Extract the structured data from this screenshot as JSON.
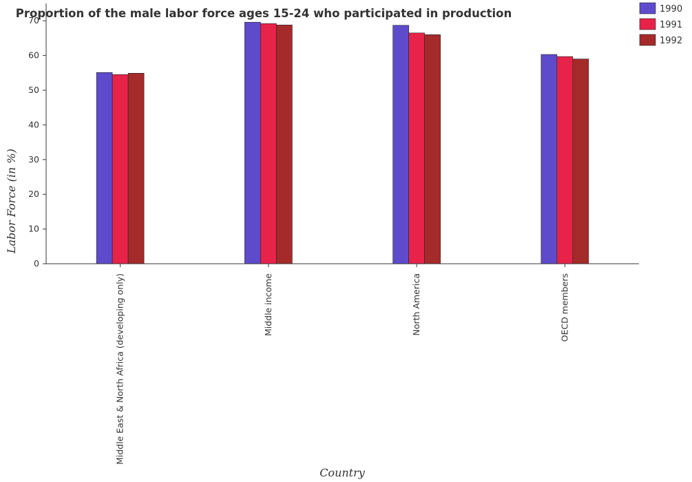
{
  "chart_data": {
    "type": "bar",
    "title": "Proportion of the male labor force ages 15-24 who participated in production",
    "xlabel": "Country",
    "ylabel": "Labor Force (in %)",
    "ylim": [
      0,
      75
    ],
    "yticks": [
      0,
      10,
      20,
      30,
      40,
      50,
      60,
      70
    ],
    "categories": [
      "Middle East & North Africa (developing only)",
      "Middle income",
      "North America",
      "OECD members"
    ],
    "series": [
      {
        "name": "1990",
        "color": "#5e4bcc",
        "values": [
          55.1,
          69.6,
          68.7,
          60.3
        ]
      },
      {
        "name": "1991",
        "color": "#e8234a",
        "values": [
          54.5,
          69.2,
          66.5,
          59.7
        ]
      },
      {
        "name": "1992",
        "color": "#a52a2a",
        "values": [
          54.9,
          68.8,
          66.0,
          59.0
        ]
      }
    ],
    "legend_position": "top-right",
    "grid": false
  }
}
